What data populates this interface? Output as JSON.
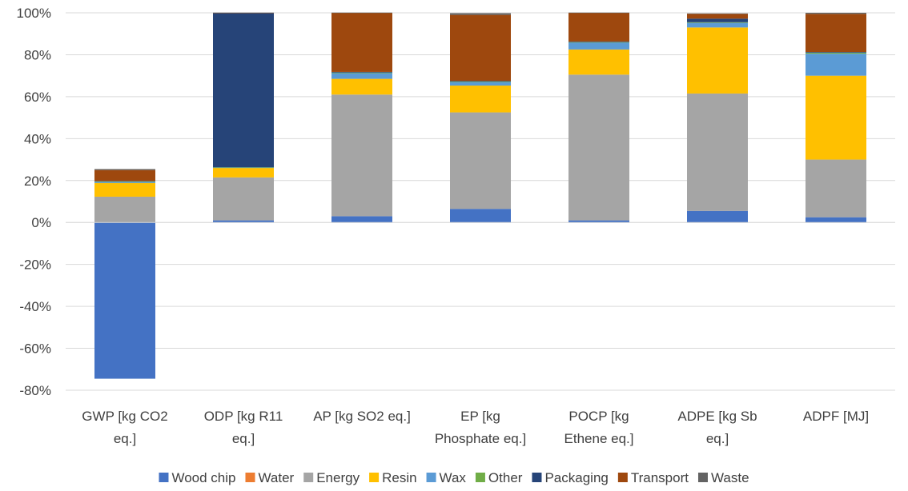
{
  "chart_data": {
    "type": "bar",
    "stacked": true,
    "title": "",
    "xlabel": "",
    "ylabel": "",
    "ylim": [
      -80,
      100
    ],
    "yticks": [
      -80,
      -60,
      -40,
      -20,
      0,
      20,
      40,
      60,
      80,
      100
    ],
    "ytick_labels": [
      "-80%",
      "-60%",
      "-40%",
      "-20%",
      "0%",
      "20%",
      "40%",
      "60%",
      "80%",
      "100%"
    ],
    "grid": true,
    "legend_position": "bottom",
    "categories": [
      [
        "GWP [kg CO2",
        "eq.]"
      ],
      [
        "ODP [kg R11",
        "eq.]"
      ],
      [
        "AP [kg SO2 eq.]"
      ],
      [
        "EP [kg",
        "Phosphate eq.]"
      ],
      [
        "POCP [kg",
        "Ethene eq.]"
      ],
      [
        "ADPE [kg Sb",
        "eq.]"
      ],
      [
        "ADPF [MJ]"
      ]
    ],
    "series": [
      {
        "name": "Wood chip",
        "color": "#4472c4",
        "values": [
          -74.5,
          1,
          3,
          6.5,
          1,
          5.5,
          2.5
        ]
      },
      {
        "name": "Water",
        "color": "#ed7d31",
        "values": [
          0,
          0,
          0,
          0,
          0,
          0,
          0
        ]
      },
      {
        "name": "Energy",
        "color": "#a5a5a5",
        "values": [
          12.3,
          20.5,
          58,
          46,
          69.5,
          56,
          27.5
        ]
      },
      {
        "name": "Resin",
        "color": "#ffc000",
        "values": [
          6.5,
          4.5,
          7.5,
          12.8,
          12,
          31.5,
          40
        ]
      },
      {
        "name": "Wax",
        "color": "#5b9bd5",
        "values": [
          0.5,
          0.2,
          2.7,
          1.7,
          3.3,
          2.2,
          10.5
        ]
      },
      {
        "name": "Other",
        "color": "#70ad47",
        "values": [
          0.3,
          0.1,
          0.3,
          0.2,
          0.2,
          0.3,
          0.5
        ]
      },
      {
        "name": "Packaging",
        "color": "#264478",
        "values": [
          0.2,
          73.5,
          0.3,
          0.3,
          0.3,
          1.7,
          0.3
        ]
      },
      {
        "name": "Transport",
        "color": "#9e480e",
        "values": [
          5.2,
          0.2,
          28.2,
          31.5,
          13.7,
          2.3,
          18.2
        ]
      },
      {
        "name": "Waste",
        "color": "#636363",
        "values": [
          0.5,
          0.1,
          0.1,
          0.8,
          0.1,
          0.2,
          0.5
        ]
      }
    ]
  }
}
